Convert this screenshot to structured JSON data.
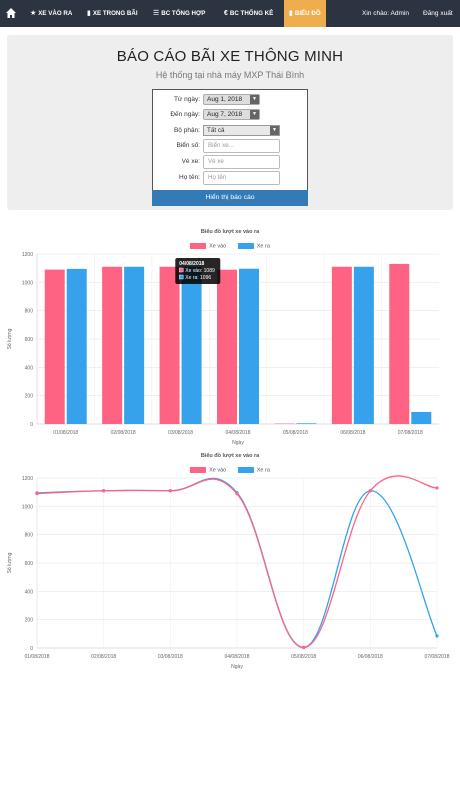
{
  "nav": {
    "home": "home-icon",
    "items": [
      {
        "label": "XE VÀO RA",
        "icon": "star-icon"
      },
      {
        "label": "XE TRONG BÃI",
        "icon": "bookmark-icon"
      },
      {
        "label": "BC TỔNG HỢP",
        "icon": "list-icon"
      },
      {
        "label": "BC THỐNG KÊ",
        "icon": "euro-icon"
      },
      {
        "label": "BIỂU ĐỒ",
        "icon": "bar-chart-icon"
      }
    ],
    "greeting": "Xin chào: Admin",
    "logout": "Đăng xuất",
    "active_color": "#f0ad4e"
  },
  "header": {
    "title": "BÁO CÁO BÃI XE THÔNG MINH",
    "subtitle": "Hệ thống tại nhà máy MXP Thái Bình"
  },
  "form": {
    "from_label": "Từ ngày:",
    "from_value": "Aug 1, 2018",
    "to_label": "Đến ngày:",
    "to_value": "Aug 7, 2018",
    "dept_label": "Bộ phận:",
    "dept_value": "Tất cả",
    "plate_label": "Biển số:",
    "plate_placeholder": "Biển xe...",
    "ticket_label": "Vé xe:",
    "ticket_placeholder": "Vé xe",
    "name_label": "Họ tên:",
    "name_placeholder": "Họ tên",
    "submit": "Hiển thị báo cáo"
  },
  "chart_data": [
    {
      "type": "bar",
      "title": "Biểu đồ lượt xe vào ra",
      "xlabel": "Ngày",
      "ylabel": "Số lượng",
      "ylim": [
        0,
        1200
      ],
      "yticks": [
        0,
        200,
        400,
        600,
        800,
        1000,
        1200
      ],
      "categories": [
        "01/08/2018",
        "02/08/2018",
        "03/08/2018",
        "04/08/2018",
        "05/08/2018",
        "06/08/2018",
        "07/08/2018"
      ],
      "series": [
        {
          "name": "Xe vào",
          "color": "#ff6384",
          "values": [
            1090,
            1110,
            1110,
            1089,
            3,
            1110,
            1130
          ]
        },
        {
          "name": "Xe ra",
          "color": "#36a2eb",
          "values": [
            1095,
            1110,
            1110,
            1096,
            5,
            1110,
            85
          ]
        }
      ],
      "tooltip": {
        "title": "04/08/2018",
        "lines": [
          "Xe vào: 1089",
          "Xe ra: 1096"
        ]
      }
    },
    {
      "type": "line",
      "title": "Biểu đồ lượt xe vào ra",
      "xlabel": "Ngày",
      "ylabel": "Số lượng",
      "ylim": [
        0,
        1200
      ],
      "yticks": [
        0,
        200,
        400,
        600,
        800,
        1000,
        1200
      ],
      "categories": [
        "01/08/2018",
        "02/08/2018",
        "03/08/2018",
        "04/08/2018",
        "05/08/2018",
        "06/08/2018",
        "07/08/2018"
      ],
      "series": [
        {
          "name": "Xe vào",
          "color": "#ff6384",
          "values": [
            1090,
            1110,
            1110,
            1089,
            3,
            1110,
            1130
          ]
        },
        {
          "name": "Xe ra",
          "color": "#36a2eb",
          "values": [
            1095,
            1110,
            1110,
            1096,
            5,
            1110,
            85
          ]
        }
      ]
    }
  ]
}
